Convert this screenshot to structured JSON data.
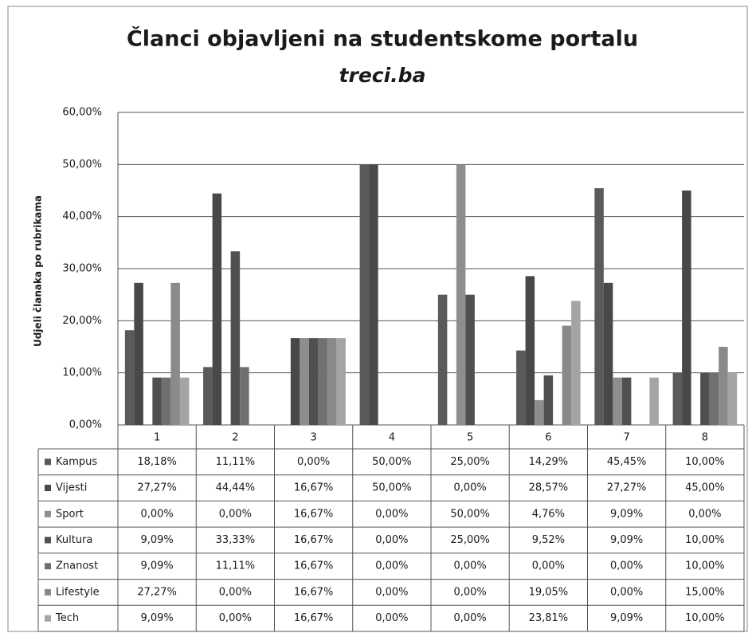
{
  "chart_data": {
    "type": "bar",
    "title": "Članci objavljeni na studentskome portalu",
    "subtitle": "treci.ba",
    "y_label": "Udjeli članaka po rubrikama",
    "categories": [
      "1",
      "2",
      "3",
      "4",
      "5",
      "6",
      "7",
      "8"
    ],
    "ylim": [
      0,
      60
    ],
    "yticks": [
      {
        "value": 0,
        "label": "0,00%"
      },
      {
        "value": 10,
        "label": "10,00%"
      },
      {
        "value": 20,
        "label": "20,00%"
      },
      {
        "value": 30,
        "label": "30,00%"
      },
      {
        "value": 40,
        "label": "40,00%"
      },
      {
        "value": 50,
        "label": "50,00%"
      },
      {
        "value": 60,
        "label": "60,00%"
      }
    ],
    "grid": true,
    "series": [
      {
        "name": "Kampus",
        "color": "#5a5a5a",
        "values": [
          18.18,
          11.11,
          0,
          50,
          25,
          14.29,
          45.45,
          10
        ],
        "value_labels": [
          "18,18%",
          "11,11%",
          "0,00%",
          "50,00%",
          "25,00%",
          "14,29%",
          "45,45%",
          "10,00%"
        ]
      },
      {
        "name": "Vijesti",
        "color": "#484848",
        "values": [
          27.27,
          44.44,
          16.67,
          50,
          0,
          28.57,
          27.27,
          45
        ],
        "value_labels": [
          "27,27%",
          "44,44%",
          "16,67%",
          "50,00%",
          "0,00%",
          "28,57%",
          "27,27%",
          "45,00%"
        ]
      },
      {
        "name": "Sport",
        "color": "#8e8e8e",
        "values": [
          0,
          0,
          16.67,
          0,
          50,
          4.76,
          9.09,
          0
        ],
        "value_labels": [
          "0,00%",
          "0,00%",
          "16,67%",
          "0,00%",
          "50,00%",
          "4,76%",
          "9,09%",
          "0,00%"
        ]
      },
      {
        "name": "Kultura",
        "color": "#505050",
        "values": [
          9.09,
          33.33,
          16.67,
          0,
          25,
          9.52,
          9.09,
          10
        ],
        "value_labels": [
          "9,09%",
          "33,33%",
          "16,67%",
          "0,00%",
          "25,00%",
          "9,52%",
          "9,09%",
          "10,00%"
        ]
      },
      {
        "name": "Znanost",
        "color": "#707070",
        "values": [
          9.09,
          11.11,
          16.67,
          0,
          0,
          0,
          0,
          10
        ],
        "value_labels": [
          "9,09%",
          "11,11%",
          "16,67%",
          "0,00%",
          "0,00%",
          "0,00%",
          "0,00%",
          "10,00%"
        ]
      },
      {
        "name": "Lifestyle",
        "color": "#8a8a8a",
        "values": [
          27.27,
          0,
          16.67,
          0,
          0,
          19.05,
          0,
          15
        ],
        "value_labels": [
          "27,27%",
          "0,00%",
          "16,67%",
          "0,00%",
          "0,00%",
          "19,05%",
          "0,00%",
          "15,00%"
        ]
      },
      {
        "name": "Tech",
        "color": "#a4a4a4",
        "values": [
          9.09,
          0,
          16.67,
          0,
          0,
          23.81,
          9.09,
          10
        ],
        "value_labels": [
          "9,09%",
          "0,00%",
          "16,67%",
          "0,00%",
          "0,00%",
          "23,81%",
          "9,09%",
          "10,00%"
        ]
      }
    ]
  }
}
